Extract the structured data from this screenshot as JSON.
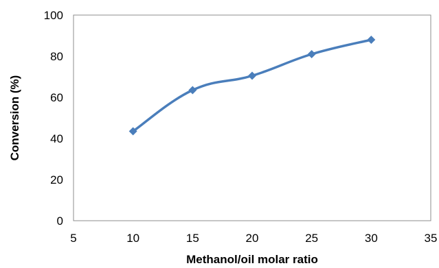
{
  "chart_data": {
    "type": "line",
    "title": "",
    "xlabel": "Methanol/oil molar ratio",
    "ylabel": "Conversion (%)",
    "xlim": [
      5,
      35
    ],
    "ylim": [
      0,
      100
    ],
    "xticks": [
      5,
      10,
      15,
      20,
      25,
      30,
      35
    ],
    "yticks": [
      0,
      20,
      40,
      60,
      80,
      100
    ],
    "grid": false,
    "legend": "none",
    "smooth": true,
    "marker": "diamond",
    "series": [
      {
        "x": [
          10,
          15,
          20,
          25,
          30
        ],
        "y": [
          43.5,
          63.5,
          70.5,
          81,
          88
        ],
        "color": "#4a7ebb"
      }
    ]
  }
}
